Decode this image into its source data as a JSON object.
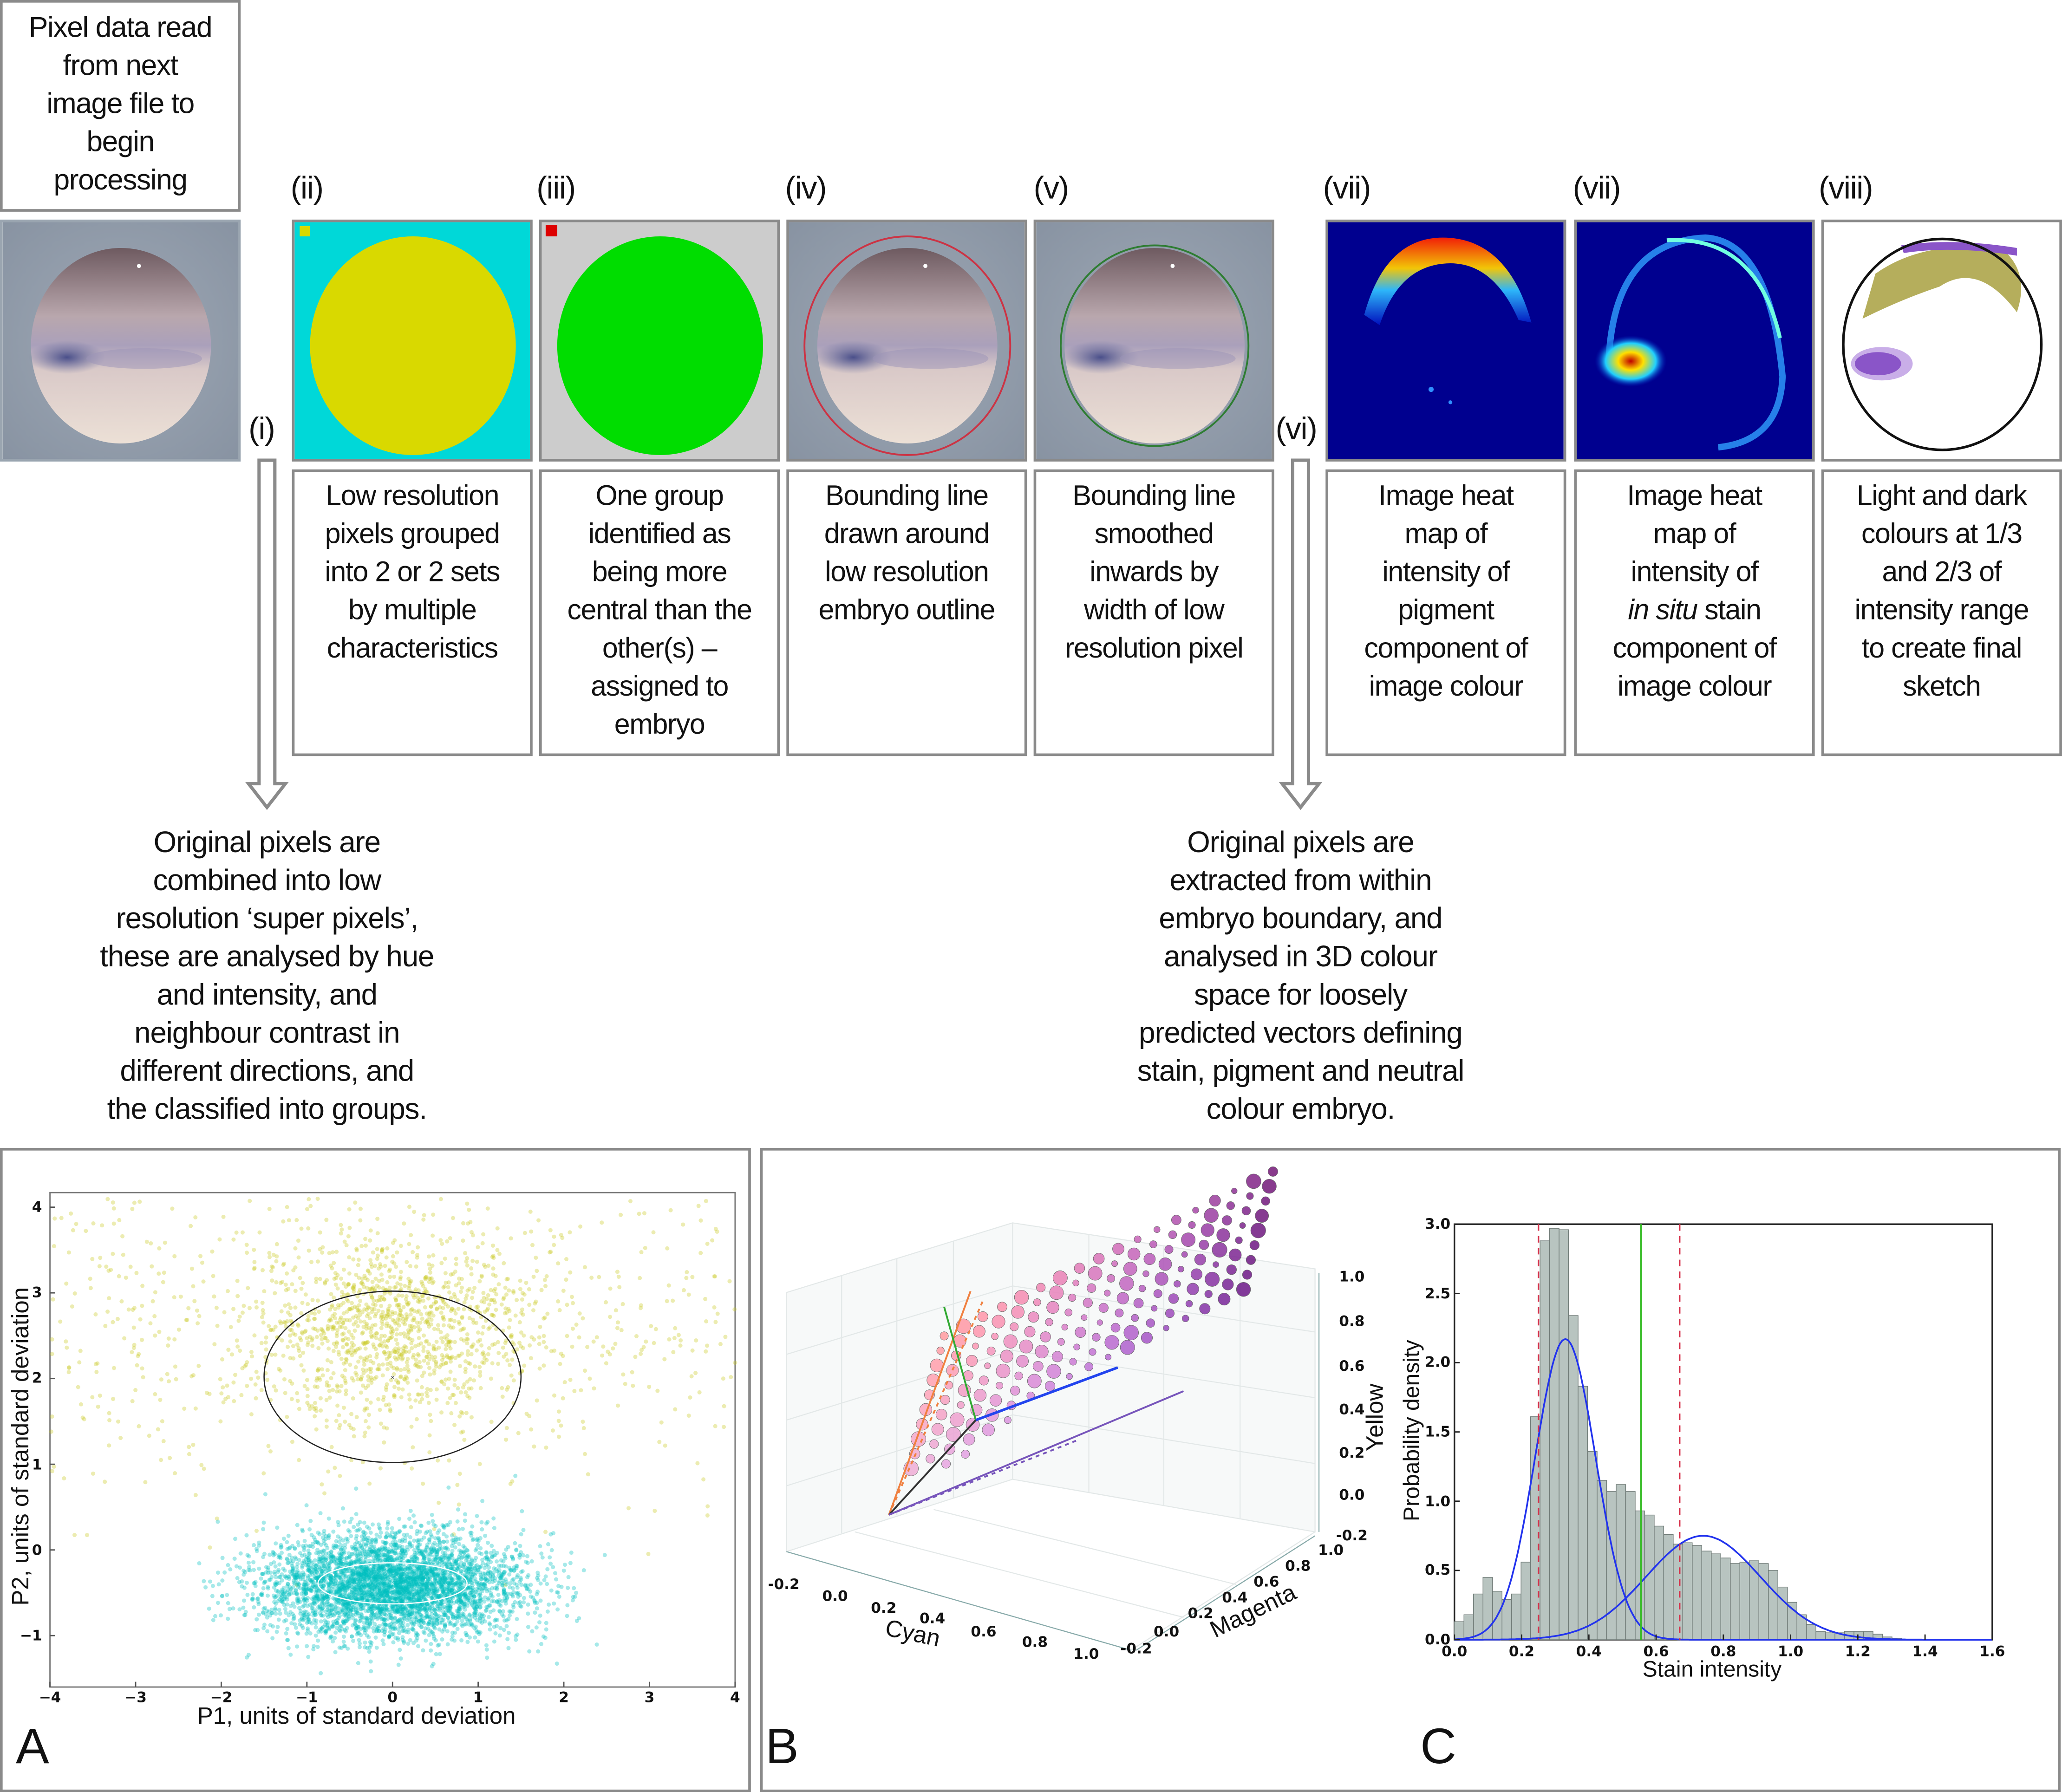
{
  "steps": {
    "start_text": "Pixel data read\nfrom next\nimage file to\nbegin\nprocessing",
    "i": {
      "label": "(i)"
    },
    "ii": {
      "label": "(ii)",
      "text": "Low resolution\npixels grouped\ninto 2 or 2 sets\nby multiple\ncharacteristics"
    },
    "iii": {
      "label": "(iii)",
      "text": "One group\nidentified as\nbeing more\ncentral than the\nother(s) –\nassigned to\nembryo"
    },
    "iv": {
      "label": "(iv)",
      "text": "Bounding line\ndrawn around\nlow resolution\nembryo outline"
    },
    "v": {
      "label": "(v)",
      "text": "Bounding line\nsmoothed\ninwards by\nwidth of low\nresolution pixel"
    },
    "vi": {
      "label": "(vi)"
    },
    "vii_a": {
      "label": "(vii)",
      "text": "Image heat\nmap of\nintensity of\npigment\ncomponent of\nimage colour"
    },
    "vii_b": {
      "label": "(vii)",
      "text_pre": "Image heat\nmap of\nintensity of",
      "text_italic": "in situ",
      "text_mid": " stain",
      "text_post": "component of\nimage colour"
    },
    "viii": {
      "label": "(viii)",
      "text": "Light and dark\ncolours at 1/3\nand 2/3 of\nintensity range\nto create final\nsketch"
    },
    "note_i": "Original pixels are\ncombined into low\nresolution ‘super pixels’,\nthese are analysed by hue\nand intensity, and\nneighbour contrast in\ndifferent directions, and\nthe classified into groups.",
    "note_vi": "Original pixels are\nextracted from within\nembryo boundary, and\nanalysed in 3D colour\nspace for loosely\npredicted vectors defining\nstain, pigment and neutral\ncolour embryo."
  },
  "colors": {
    "yellow_group": "#d9d900",
    "cyan_group": "#00d8d8",
    "embryo_group": "#00dd00",
    "background_group": "#cccccc",
    "outline_red": "#cc3344",
    "outline_green": "#2e7d32",
    "heatmap_bg": "#00008f",
    "sketch_olive": "#a8a040",
    "sketch_purple": "#8a55c8"
  },
  "panels": {
    "a": "A",
    "b": "B",
    "c": "C"
  },
  "chart_data": [
    {
      "type": "scatter",
      "panel": "A",
      "xlabel": "P1, units of standard deviation",
      "ylabel": "P2, units of standard deviation",
      "xlim": [
        -4,
        4
      ],
      "ylim": [
        -1.6,
        4.17
      ],
      "xticks": [
        "−4",
        "−3",
        "−2",
        "−1",
        "0",
        "1",
        "2",
        "3",
        "4"
      ],
      "yticks": [
        "−1",
        "0",
        "1",
        "2",
        "3",
        "4"
      ],
      "series": [
        {
          "name": "yellow group",
          "color": "#c8c820",
          "n_points": 1800,
          "center": [
            0,
            2.6
          ],
          "sd": [
            0.8,
            0.55
          ],
          "diffuse_fraction": 0.35,
          "ellipse": {
            "center": [
              0,
              2.02
            ],
            "semi_axes": [
              1.5,
              1.0
            ],
            "color": "#222222"
          }
        },
        {
          "name": "cyan group",
          "color": "#00c0c0",
          "n_points": 4200,
          "center": [
            0,
            -0.42
          ],
          "sd": [
            0.75,
            0.3
          ],
          "diffuse_fraction": 0.0,
          "ellipse": {
            "center": [
              0,
              -0.39
            ],
            "semi_axes": [
              0.87,
              0.24
            ],
            "color": "#ffffff"
          }
        }
      ]
    },
    {
      "type": "scatter3d",
      "panel": "B",
      "xlabel": "Cyan",
      "ylabel": "Magenta",
      "zlabel": "Yellow",
      "xticks": [
        "-0.2",
        "0.0",
        "0.2",
        "0.4",
        "0.6",
        "0.8",
        "1.0"
      ],
      "yticks": [
        "-0.2",
        "0.0",
        "0.2",
        "0.4",
        "0.6",
        "0.8",
        "1.0"
      ],
      "zticks": [
        "1.0",
        "0.8",
        "0.6",
        "0.4",
        "0.2",
        "0.0",
        "-0.2"
      ],
      "vectors": [
        {
          "name": "pigment",
          "color": "#f08040"
        },
        {
          "name": "neutral",
          "color": "#33aa33"
        },
        {
          "name": "stain",
          "color": "#2244ee"
        },
        {
          "name": "embryo",
          "color": "#7755bb"
        }
      ]
    },
    {
      "type": "bar",
      "panel": "C",
      "xlabel": "Stain intensity",
      "ylabel": "Probability density",
      "xlim": [
        0,
        1.6
      ],
      "ylim": [
        0,
        3.0
      ],
      "xticks": [
        "0.0",
        "0.2",
        "0.4",
        "0.6",
        "0.8",
        "1.0",
        "1.2",
        "1.4",
        "1.6"
      ],
      "yticks": [
        "0.0",
        "0.5",
        "1.0",
        "1.5",
        "2.0",
        "2.5",
        "3.0"
      ],
      "bin_start": 0,
      "bin_width": 0.0283,
      "values": [
        0.13,
        0.18,
        0.33,
        0.45,
        0.35,
        0.29,
        0.33,
        0.56,
        1.61,
        2.88,
        2.97,
        2.96,
        2.34,
        1.83,
        1.36,
        1.15,
        1.07,
        1.12,
        1.07,
        0.93,
        0.9,
        0.82,
        0.76,
        0.69,
        0.7,
        0.68,
        0.64,
        0.62,
        0.59,
        0.55,
        0.56,
        0.57,
        0.55,
        0.5,
        0.38,
        0.27,
        0.18,
        0.11,
        0.06,
        0.05,
        0.05,
        0.06,
        0.06,
        0.06,
        0.04,
        0.02,
        0.01
      ],
      "gaussians": [
        {
          "mean": 0.33,
          "sd": 0.09,
          "peak": 2.17
        },
        {
          "mean": 0.74,
          "sd": 0.17,
          "peak": 0.75
        }
      ],
      "thresholds_dashed": [
        0.25,
        0.67
      ],
      "threshold_solid": 0.555
    }
  ]
}
